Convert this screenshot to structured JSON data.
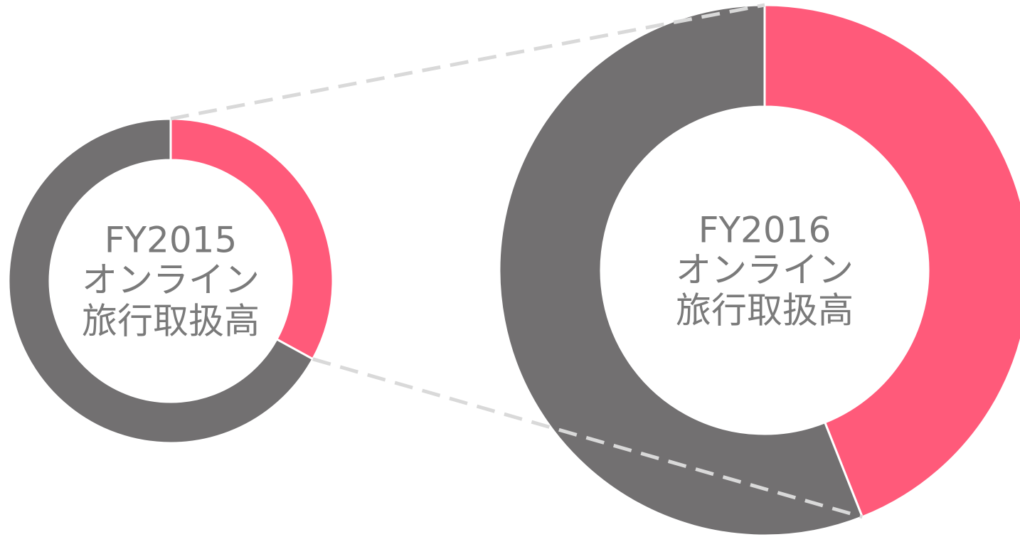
{
  "chart_data": [
    {
      "type": "donut",
      "title_lines": [
        "FY2015",
        "オンライン",
        "旅行取扱高"
      ],
      "values": [
        33,
        67
      ],
      "colors": [
        "#ff5a7a",
        "#727071"
      ]
    },
    {
      "type": "donut",
      "title_lines": [
        "FY2016",
        "オンライン",
        "旅行取扱高"
      ],
      "values": [
        44,
        56
      ],
      "colors": [
        "#ff5a7a",
        "#727071"
      ]
    }
  ]
}
